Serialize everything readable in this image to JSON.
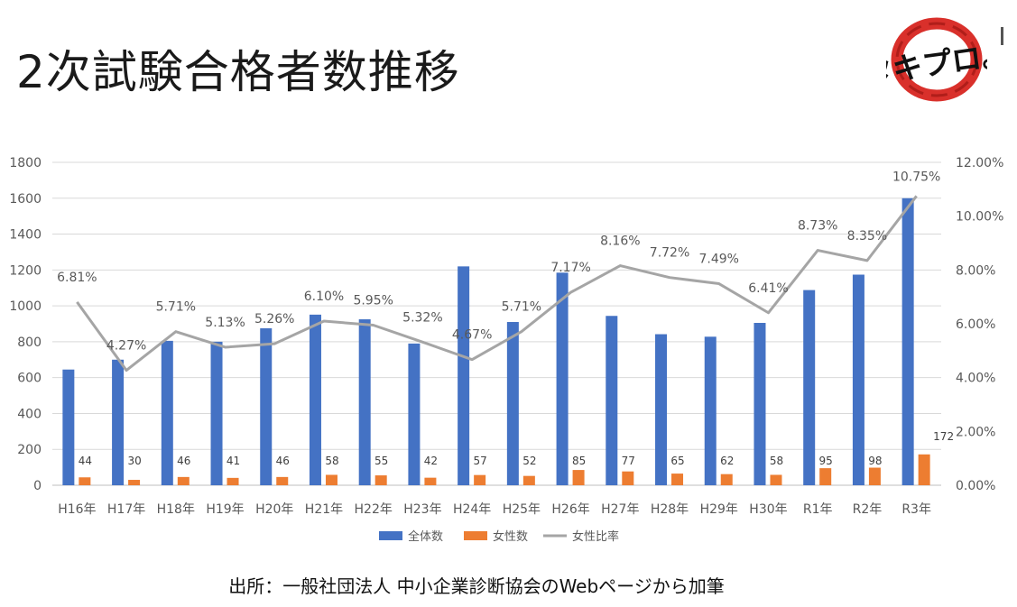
{
  "page": {
    "title": "2次試験合格者数推移",
    "source": "出所：一般社団法人 中小企業診断協会のWebページから加筆",
    "logo_text": "タキプロ。"
  },
  "colors": {
    "total": "#4472C4",
    "female": "#ED7D31",
    "ratio": "#A5A5A5",
    "logo_ring": "#D9302B"
  },
  "chart_data": {
    "type": "bar",
    "categories": [
      "H16年",
      "H17年",
      "H18年",
      "H19年",
      "H20年",
      "H21年",
      "H22年",
      "H23年",
      "H24年",
      "H25年",
      "H26年",
      "H27年",
      "H28年",
      "H29年",
      "H30年",
      "R1年",
      "R2年",
      "R3年"
    ],
    "series": [
      {
        "name": "全体数",
        "type": "bar",
        "axis": "left",
        "values": [
          645,
          700,
          805,
          800,
          875,
          951,
          925,
          790,
          1220,
          910,
          1185,
          944,
          842,
          828,
          905,
          1088,
          1174,
          1600
        ]
      },
      {
        "name": "女性数",
        "type": "bar",
        "axis": "left",
        "values": [
          44,
          30,
          46,
          41,
          46,
          58,
          55,
          42,
          57,
          52,
          85,
          77,
          65,
          62,
          58,
          95,
          98,
          172
        ],
        "labels": [
          "44",
          "30",
          "46",
          "41",
          "46",
          "58",
          "55",
          "42",
          "57",
          "52",
          "85",
          "77",
          "65",
          "62",
          "58",
          "95",
          "98",
          "172"
        ]
      },
      {
        "name": "女性比率",
        "type": "line",
        "axis": "right",
        "values": [
          6.81,
          4.27,
          5.71,
          5.13,
          5.26,
          6.1,
          5.95,
          5.32,
          4.67,
          5.71,
          7.17,
          8.16,
          7.72,
          7.49,
          6.41,
          8.73,
          8.35,
          10.75
        ],
        "labels": [
          "6.81%",
          "4.27%",
          "5.71%",
          "5.13%",
          "5.26%",
          "6.10%",
          "5.95%",
          "5.32%",
          "4.67%",
          "5.71%",
          "7.17%",
          "8.16%",
          "7.72%",
          "7.49%",
          "6.41%",
          "8.73%",
          "8.35%",
          "10.75%"
        ]
      }
    ],
    "y_left": {
      "min": 0,
      "max": 1800,
      "ticks": [
        "0",
        "200",
        "400",
        "600",
        "800",
        "1000",
        "1200",
        "1400",
        "1600",
        "1800"
      ]
    },
    "y_right": {
      "min": 0,
      "max": 12,
      "ticks": [
        "0.00%",
        "2.00%",
        "4.00%",
        "6.00%",
        "8.00%",
        "10.00%",
        "12.00%"
      ]
    },
    "grid": true,
    "legend_position": "bottom",
    "legend": [
      "全体数",
      "女性数",
      "女性比率"
    ]
  }
}
